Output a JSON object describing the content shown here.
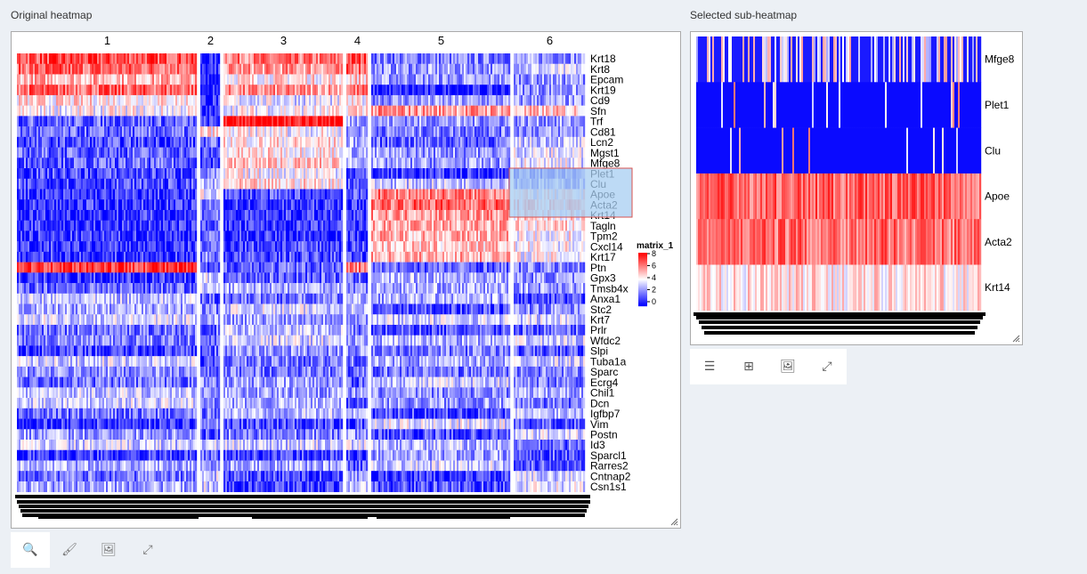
{
  "original": {
    "title": "Original heatmap",
    "columns": [
      {
        "label": "1"
      },
      {
        "label": "2"
      },
      {
        "label": "3"
      },
      {
        "label": "4"
      },
      {
        "label": "5"
      },
      {
        "label": "6"
      }
    ],
    "genes": [
      "Krt18",
      "Krt8",
      "Epcam",
      "Krt19",
      "Cd9",
      "Sfn",
      "Trf",
      "Cd81",
      "Lcn2",
      "Mgst1",
      "Mfge8",
      "Plet1",
      "Clu",
      "Apoe",
      "Acta2",
      "Krt14",
      "Tagln",
      "Tpm2",
      "Cxcl14",
      "Krt17",
      "Ptn",
      "Gpx3",
      "Tmsb4x",
      "Anxa1",
      "Stc2",
      "Krt7",
      "Prlr",
      "Wfdc2",
      "Slpi",
      "Tuba1a",
      "Sparc",
      "Ecrg4",
      "Chil1",
      "Dcn",
      "Igfbp7",
      "Vim",
      "Postn",
      "Id3",
      "Sparcl1",
      "Rarres2",
      "Cntnap2",
      "Csn1s1"
    ],
    "legend": {
      "title": "matrix_1",
      "ticks": [
        "8",
        "6",
        "4",
        "2",
        "0"
      ]
    },
    "toolbar": [
      {
        "name": "search-icon",
        "glyph": "🔍"
      },
      {
        "name": "brush-icon",
        "glyph": "🖌"
      },
      {
        "name": "image-icon",
        "glyph": "🖼"
      },
      {
        "name": "expand-icon",
        "glyph": "⤢"
      }
    ]
  },
  "sub": {
    "title": "Selected sub-heatmap",
    "genes": [
      "Mfge8",
      "Plet1",
      "Clu",
      "Apoe",
      "Acta2",
      "Krt14"
    ],
    "toolbar": [
      {
        "name": "checklist-icon",
        "glyph": "☰"
      },
      {
        "name": "table-icon",
        "glyph": "⊞"
      },
      {
        "name": "image-icon",
        "glyph": "🖼"
      },
      {
        "name": "expand-icon",
        "glyph": "⤢"
      }
    ]
  },
  "colors": {
    "low": "#0000ff",
    "mid": "#ffffff",
    "high": "#ff0000",
    "selection": "#a7cdf2",
    "selection_border": "#d9534f"
  }
}
